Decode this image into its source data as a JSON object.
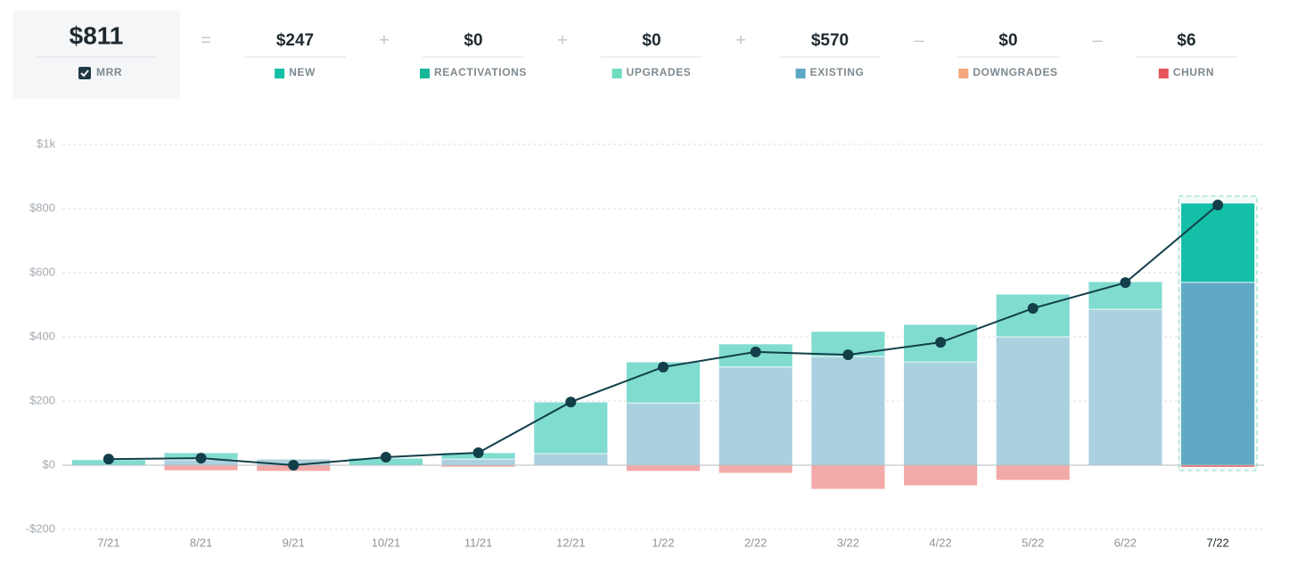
{
  "summary": {
    "total": {
      "value": "$811",
      "label": "MRR"
    },
    "items": [
      {
        "operator": "=",
        "value": "$247",
        "label": "NEW",
        "color": "#13bfa6"
      },
      {
        "operator": "+",
        "value": "$0",
        "label": "REACTIVATIONS",
        "color": "#17b79a"
      },
      {
        "operator": "+",
        "value": "$0",
        "label": "UPGRADES",
        "color": "#6fdcc0"
      },
      {
        "operator": "+",
        "value": "$570",
        "label": "EXISTING",
        "color": "#5ea7c4"
      },
      {
        "operator": "–",
        "value": "$0",
        "label": "DOWNGRADES",
        "color": "#f4a77c"
      },
      {
        "operator": "–",
        "value": "$6",
        "label": "CHURN",
        "color": "#e5555a"
      }
    ]
  },
  "chart_data": {
    "type": "bar",
    "categories": [
      "7/21",
      "8/21",
      "9/21",
      "10/21",
      "11/21",
      "12/21",
      "1/22",
      "2/22",
      "3/22",
      "4/22",
      "5/22",
      "6/22",
      "7/22"
    ],
    "series": [
      {
        "values": [
          0,
          17,
          19,
          0,
          19,
          36,
          194,
          306,
          339,
          322,
          400,
          486,
          570
        ],
        "colors": [
          "#aad1df",
          "#aad1df",
          "#aad1df",
          "#aad1df",
          "#aad1df",
          "#aad1df",
          "#aad1df",
          "#aad1df",
          "#aad1df",
          "#aad1df",
          "#aad1df",
          "#aad1df",
          "#5fa9c5"
        ]
      },
      {
        "values": [
          17,
          22,
          0,
          22,
          20,
          161,
          128,
          72,
          78,
          117,
          133,
          86,
          247
        ],
        "colors": [
          "#80dccf",
          "#80dccf",
          "#80dccf",
          "#80dccf",
          "#80dccf",
          "#80dccf",
          "#80dccf",
          "#80dccf",
          "#80dccf",
          "#80dccf",
          "#80dccf",
          "#80dccf",
          "#14bfa7"
        ]
      },
      {
        "values": [
          0,
          -17,
          -19,
          0,
          -6,
          0,
          -19,
          -25,
          -75,
          -64,
          -47,
          -2,
          -6
        ],
        "colors": [
          "#f2aaa8",
          "#f2aaa8",
          "#f2aaa8",
          "#f2aaa8",
          "#f2aaa8",
          "#f2aaa8",
          "#f2aaa8",
          "#f2aaa8",
          "#f2aaa8",
          "#f2aaa8",
          "#f2aaa8",
          "#f2aaa8",
          "#e8585a"
        ]
      }
    ],
    "line": {
      "color": "#123f4a",
      "values": [
        19,
        22,
        0,
        25,
        39,
        197,
        306,
        353,
        344,
        383,
        489,
        569,
        811
      ]
    },
    "ylim": [
      -200,
      1000
    ],
    "yticks": [
      {
        "value": -200,
        "label": "-$200"
      },
      {
        "value": 0,
        "label": "$0"
      },
      {
        "value": 200,
        "label": "$200"
      },
      {
        "value": 400,
        "label": "$400"
      },
      {
        "value": 600,
        "label": "$600"
      },
      {
        "value": 800,
        "label": "$800"
      },
      {
        "value": 1000,
        "label": "$1k"
      }
    ],
    "grid": true
  }
}
